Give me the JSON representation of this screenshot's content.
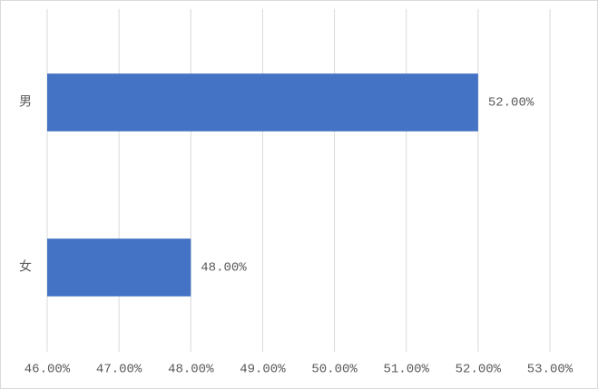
{
  "chart_data": {
    "type": "barh",
    "categories": [
      "男",
      "女"
    ],
    "values": [
      52,
      48
    ],
    "value_labels": [
      "52.00%",
      "48.00%"
    ],
    "color": "#4472c4",
    "xlim": [
      46,
      53
    ],
    "xticks": [
      {
        "value": 46,
        "label": "46.00%"
      },
      {
        "value": 47,
        "label": "47.00%"
      },
      {
        "value": 48,
        "label": "48.00%"
      },
      {
        "value": 49,
        "label": "49.00%"
      },
      {
        "value": 50,
        "label": "50.00%"
      },
      {
        "value": 51,
        "label": "51.00%"
      },
      {
        "value": 52,
        "label": "52.00%"
      },
      {
        "value": 53,
        "label": "53.00%"
      }
    ],
    "grid": true
  }
}
